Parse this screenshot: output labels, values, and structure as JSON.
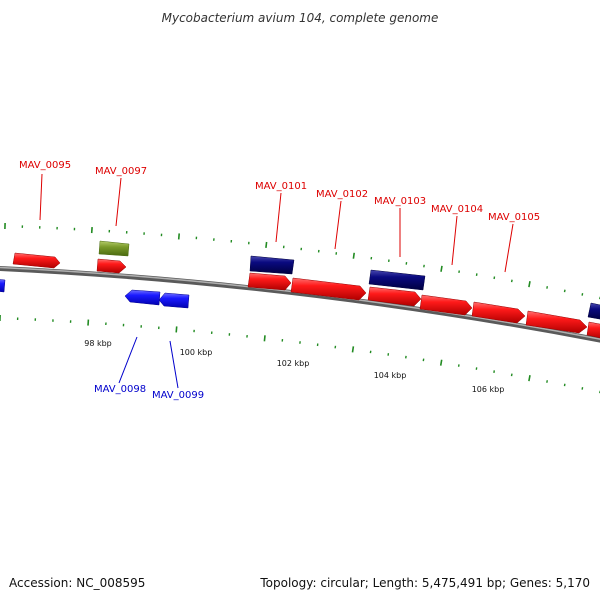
{
  "title": "Mycobacterium avium 104, complete genome",
  "footer": {
    "accession": "Accession: NC_008595",
    "summary": "Topology: circular; Length: 5,475,491 bp; Genes: 5,170"
  },
  "colors": {
    "forward_gene": "#ff1a1a",
    "reverse_gene": "#1a1aff",
    "forward_other": "#0a0a80",
    "rna_feature": "#7a9a2a",
    "backbone": "#888888",
    "tick": "#228b22",
    "label_forward": "#dd0000",
    "label_reverse": "#0000cc"
  },
  "scale_labels": [
    "98 kbp",
    "100 kbp",
    "102 kbp",
    "104 kbp",
    "106 kbp"
  ],
  "gene_labels": {
    "forward": [
      "MAV_0095",
      "MAV_0097",
      "MAV_0101",
      "MAV_0102",
      "MAV_0103",
      "MAV_0104",
      "MAV_0105"
    ],
    "reverse": [
      "MAV_0098",
      "MAV_0099"
    ]
  }
}
